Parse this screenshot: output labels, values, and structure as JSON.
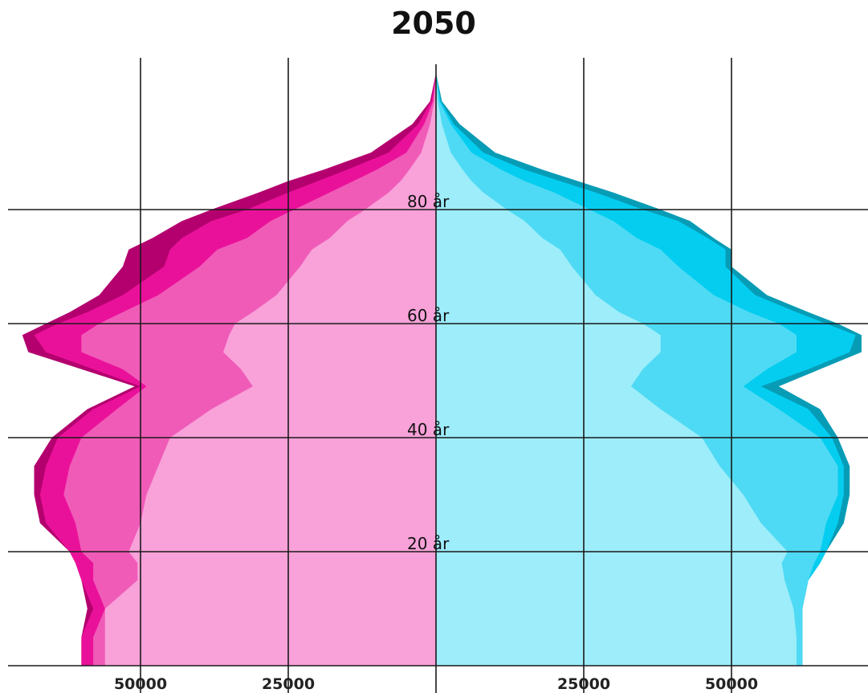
{
  "chart_data": {
    "type": "area",
    "title": "2050",
    "chart_kind": "population pyramid",
    "x_tick_labels": {
      "left": [
        "50000",
        "25000"
      ],
      "right": [
        "25000",
        "50000"
      ]
    },
    "x_tick_values": [
      50000,
      25000
    ],
    "xlim": [
      -73000,
      73000
    ],
    "y_tick_labels": [
      "20 år",
      "40 år",
      "60 år",
      "80 år"
    ],
    "y_tick_values": [
      20,
      40,
      60,
      80
    ],
    "ylim": [
      0,
      105
    ],
    "grid": true,
    "colors": {
      "female_bands": [
        "#f9a1d9",
        "#f05bb8",
        "#ea119a",
        "#b3006e"
      ],
      "male_bands": [
        "#9dedfb",
        "#4edaf4",
        "#04cdf0",
        "#079cb6"
      ],
      "grid": "#1a1a1a"
    },
    "female": {
      "side": "left",
      "ages": [
        0,
        5,
        10,
        15,
        18,
        20,
        25,
        30,
        35,
        40,
        45,
        49,
        52,
        55,
        58,
        60,
        62,
        65,
        70,
        73,
        75,
        78,
        80,
        83,
        85,
        87,
        90,
        95,
        99,
        104
      ],
      "bands": [
        [
          56000,
          56000,
          56000,
          50500,
          50500,
          52000,
          50000,
          49000,
          47000,
          45000,
          38000,
          31000,
          33000,
          36000,
          35000,
          34000,
          31000,
          27000,
          23000,
          21000,
          18000,
          15000,
          12000,
          8000,
          6000,
          4500,
          2500,
          1000,
          300,
          0
        ],
        [
          58000,
          58000,
          56000,
          58000,
          58000,
          60000,
          61000,
          63000,
          62000,
          60000,
          54000,
          49000,
          53000,
          60000,
          60000,
          57000,
          53000,
          47000,
          40000,
          37000,
          32000,
          28000,
          24000,
          18000,
          14000,
          10000,
          5000,
          2000,
          500,
          0
        ],
        [
          60000,
          60000,
          58000,
          60000,
          61000,
          62000,
          66000,
          67000,
          66000,
          64000,
          58000,
          50000,
          58000,
          66000,
          68000,
          64000,
          59000,
          53000,
          46000,
          45000,
          43000,
          38000,
          32000,
          25000,
          20000,
          15000,
          8000,
          3000,
          800,
          0
        ],
        [
          60000,
          60000,
          59000,
          60000,
          61000,
          62000,
          67000,
          68000,
          68000,
          65000,
          59000,
          51000,
          60000,
          69000,
          70000,
          66000,
          62000,
          57000,
          53000,
          52000,
          48000,
          43000,
          38000,
          30000,
          25000,
          19000,
          11000,
          4000,
          1000,
          0
        ]
      ]
    },
    "male": {
      "side": "right",
      "ages": [
        0,
        5,
        10,
        15,
        18,
        20,
        25,
        30,
        35,
        40,
        45,
        49,
        52,
        55,
        58,
        60,
        62,
        65,
        70,
        73,
        75,
        78,
        80,
        83,
        85,
        87,
        90,
        95,
        99,
        104
      ],
      "bands": [
        [
          61000,
          61000,
          60500,
          59000,
          58500,
          59500,
          55000,
          52000,
          48000,
          45000,
          38000,
          33000,
          35000,
          38000,
          38000,
          35000,
          31000,
          27000,
          23000,
          21000,
          18000,
          15000,
          12000,
          8000,
          6000,
          4500,
          2500,
          1000,
          300,
          0
        ],
        [
          62000,
          62000,
          62000,
          63000,
          64000,
          65000,
          66000,
          68000,
          68000,
          65000,
          58000,
          52000,
          56000,
          61000,
          61000,
          58000,
          53000,
          47000,
          41000,
          38000,
          34000,
          30000,
          26000,
          20000,
          15000,
          11000,
          6000,
          2500,
          600,
          0
        ],
        [
          62000,
          62000,
          62000,
          63000,
          65000,
          66000,
          68000,
          69000,
          69000,
          67000,
          63000,
          55000,
          63000,
          70000,
          71000,
          66000,
          61000,
          54000,
          49000,
          49000,
          46000,
          41000,
          35000,
          27000,
          21000,
          15000,
          8000,
          3000,
          800,
          0
        ],
        [
          62000,
          62000,
          62000,
          63000,
          65000,
          66000,
          69000,
          70000,
          70000,
          68000,
          65000,
          58000,
          65000,
          72000,
          72000,
          68000,
          63000,
          56000,
          50000,
          50000,
          47000,
          43000,
          38000,
          30000,
          24000,
          18000,
          10000,
          4000,
          1000,
          0
        ]
      ]
    }
  }
}
